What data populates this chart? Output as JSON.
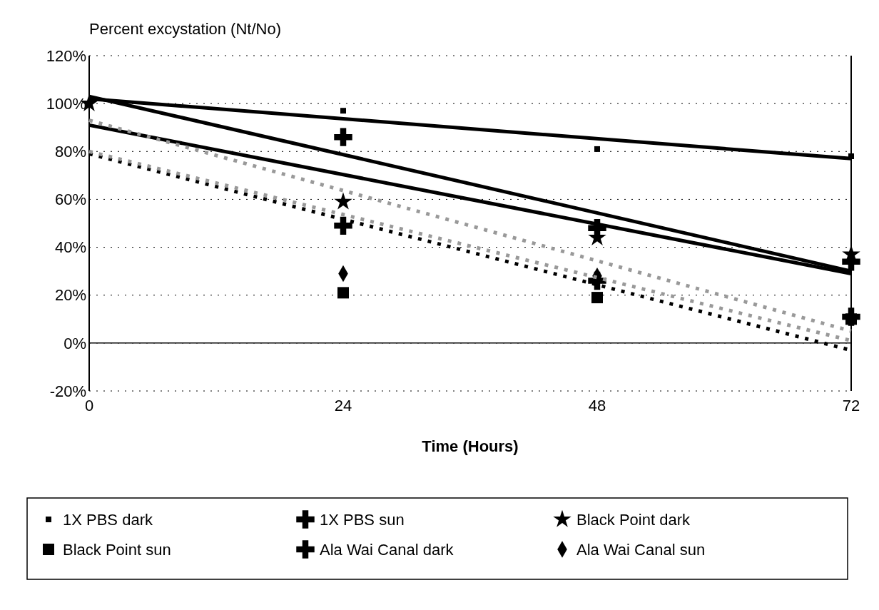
{
  "chart_data": {
    "type": "scatter",
    "ylabel": "Percent excystation (Nt/No)",
    "xlabel": "Time (Hours)",
    "xlim": [
      0,
      72
    ],
    "xticks": [
      0,
      24,
      48,
      72
    ],
    "ylim": [
      -20,
      120
    ],
    "yticks": [
      {
        "value": -20,
        "label": "-20%"
      },
      {
        "value": 0,
        "label": "0%"
      },
      {
        "value": 20,
        "label": "20%"
      },
      {
        "value": 40,
        "label": "40%"
      },
      {
        "value": 60,
        "label": "60%"
      },
      {
        "value": 80,
        "label": "80%"
      },
      {
        "value": 100,
        "label": "100%"
      },
      {
        "value": 120,
        "label": "120%"
      }
    ],
    "grid": "y",
    "legend": "bottom",
    "x": [
      0,
      24,
      48,
      72
    ],
    "series": [
      {
        "name": "1X PBS dark",
        "type": "scatter",
        "marker": "square",
        "color": "#000000",
        "values": [
          null,
          97,
          81,
          78
        ]
      },
      {
        "name": "1X PBS sun",
        "type": "scatter",
        "marker": "cross",
        "color": "#000000",
        "values": [
          null,
          49,
          26,
          11
        ]
      },
      {
        "name": "Black Point dark",
        "type": "scatter",
        "marker": "star",
        "color": "#000000",
        "values": [
          100,
          59,
          44,
          37
        ]
      },
      {
        "name": "Black Point sun",
        "type": "scatter",
        "marker": "square",
        "color": "#000000",
        "values": [
          null,
          21,
          19,
          10
        ]
      },
      {
        "name": "Ala Wai Canal dark",
        "type": "scatter",
        "marker": "cross",
        "color": "#000000",
        "values": [
          null,
          86,
          48,
          34
        ]
      },
      {
        "name": "Ala Wai Canal sun",
        "type": "scatter",
        "marker": "diamond",
        "color": "#000000",
        "values": [
          null,
          29,
          28,
          null
        ]
      },
      {
        "type": "line",
        "marker": "none",
        "line_style": "solid",
        "color": "#000000",
        "values": [
          102,
          null,
          null,
          77
        ]
      },
      {
        "type": "line",
        "marker": "none",
        "line_style": "solid",
        "color": "#000000",
        "values": [
          103,
          null,
          null,
          30
        ]
      },
      {
        "type": "line",
        "marker": "none",
        "line_style": "solid",
        "color": "#000000",
        "values": [
          91,
          null,
          null,
          29
        ]
      },
      {
        "type": "line",
        "marker": "none",
        "line_style": "dotted",
        "color": "#000000",
        "values": [
          79,
          null,
          null,
          -3
        ]
      },
      {
        "type": "line",
        "marker": "none",
        "line_style": "dotted",
        "color": "#999999",
        "values": [
          93,
          null,
          null,
          5
        ]
      },
      {
        "type": "line",
        "marker": "none",
        "line_style": "dotted",
        "color": "#999999",
        "values": [
          80,
          null,
          null,
          1
        ]
      }
    ]
  }
}
